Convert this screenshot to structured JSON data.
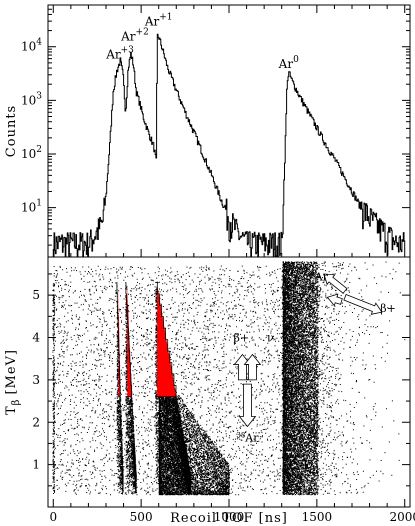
{
  "chart_data": [
    {
      "type": "line",
      "panel": "top",
      "ylabel": "Counts",
      "yscale": "log",
      "xlim": [
        -30,
        2030
      ],
      "ylim": [
        1.2,
        60000
      ],
      "yticks": [
        {
          "value": 10,
          "base": "10",
          "exp": "1"
        },
        {
          "value": 100,
          "base": "10",
          "exp": "2"
        },
        {
          "value": 1000,
          "base": "10",
          "exp": "3"
        },
        {
          "value": 10000,
          "base": "10",
          "exp": "4"
        }
      ],
      "peak_labels": [
        {
          "text": "Ar",
          "sup": "+3",
          "x": 380,
          "y": 6000
        },
        {
          "text": "Ar",
          "sup": "+2",
          "x": 465,
          "y": 13000
        },
        {
          "text": "Ar",
          "sup": "+1",
          "x": 600,
          "y": 25000
        },
        {
          "text": "Ar",
          "sup": "0",
          "x": 1340,
          "y": 4000
        }
      ],
      "series": [
        {
          "x": [
            0,
            40,
            80,
            120,
            160,
            200,
            240,
            280,
            300,
            320,
            340,
            360,
            380,
            395,
            410,
            425,
            440,
            455,
            470,
            490,
            510,
            540,
            570,
            585,
            590,
            600,
            620,
            650,
            700,
            750,
            800,
            850,
            900,
            950,
            1000,
            1050,
            1100,
            1150,
            1200,
            1250,
            1300,
            1320,
            1330,
            1340,
            1360,
            1400,
            1450,
            1500,
            1550,
            1600,
            1650,
            1700,
            1750,
            1800,
            1850,
            1900,
            1950,
            2000
          ],
          "values": [
            2,
            2,
            2,
            2,
            2,
            2,
            3,
            5,
            20,
            150,
            1500,
            3500,
            5500,
            3000,
            600,
            4000,
            7500,
            4500,
            1500,
            900,
            500,
            250,
            140,
            70,
            16000,
            15000,
            9000,
            4000,
            1500,
            600,
            250,
            100,
            40,
            15,
            6,
            3,
            2,
            2,
            2,
            2,
            2,
            200,
            2500,
            3200,
            2200,
            1200,
            600,
            300,
            150,
            80,
            40,
            20,
            10,
            6,
            4,
            3,
            2,
            2
          ]
        }
      ]
    },
    {
      "type": "scatter",
      "panel": "bottom",
      "xlabel": "Recoil TOF [ns]",
      "ylabel": "T",
      "ylabel_sub": "β",
      "ylabel_unit": "[MeV]",
      "xlim": [
        -30,
        2030
      ],
      "ylim": [
        0,
        5.9
      ],
      "xticks": [
        0,
        500,
        1000,
        1500,
        2000
      ],
      "yticks": [
        1,
        2,
        3,
        4,
        5
      ],
      "highlight_color": "#ff0000",
      "highlight_threshold": 2.6,
      "bands": [
        {
          "x_start": 360,
          "x_end": 395,
          "y_max": 5.3,
          "density": "high"
        },
        {
          "x_start": 410,
          "x_end": 470,
          "y_max": 5.3,
          "density": "high"
        },
        {
          "x_start": 580,
          "x_end": 780,
          "y_max": 5.3,
          "density": "high"
        },
        {
          "x_start": 1300,
          "x_end": 2000,
          "y_max": 5.9,
          "density": "diffuse"
        }
      ],
      "annotations": [
        {
          "text": "β+",
          "x": 1070,
          "y": 3.9
        },
        {
          "text": "ν",
          "x": 1235,
          "y": 3.9
        },
        {
          "text": "38Ar",
          "pre": "38",
          "main": "Ar",
          "x": 1105,
          "y": 1.55
        },
        {
          "text": "38Ar",
          "pre": "38",
          "main": "Ar",
          "x": 1500,
          "y": 5.35
        },
        {
          "text": "ν",
          "x": 1510,
          "y": 5.05
        },
        {
          "text": "β+",
          "x": 1905,
          "y": 4.6
        }
      ]
    }
  ]
}
